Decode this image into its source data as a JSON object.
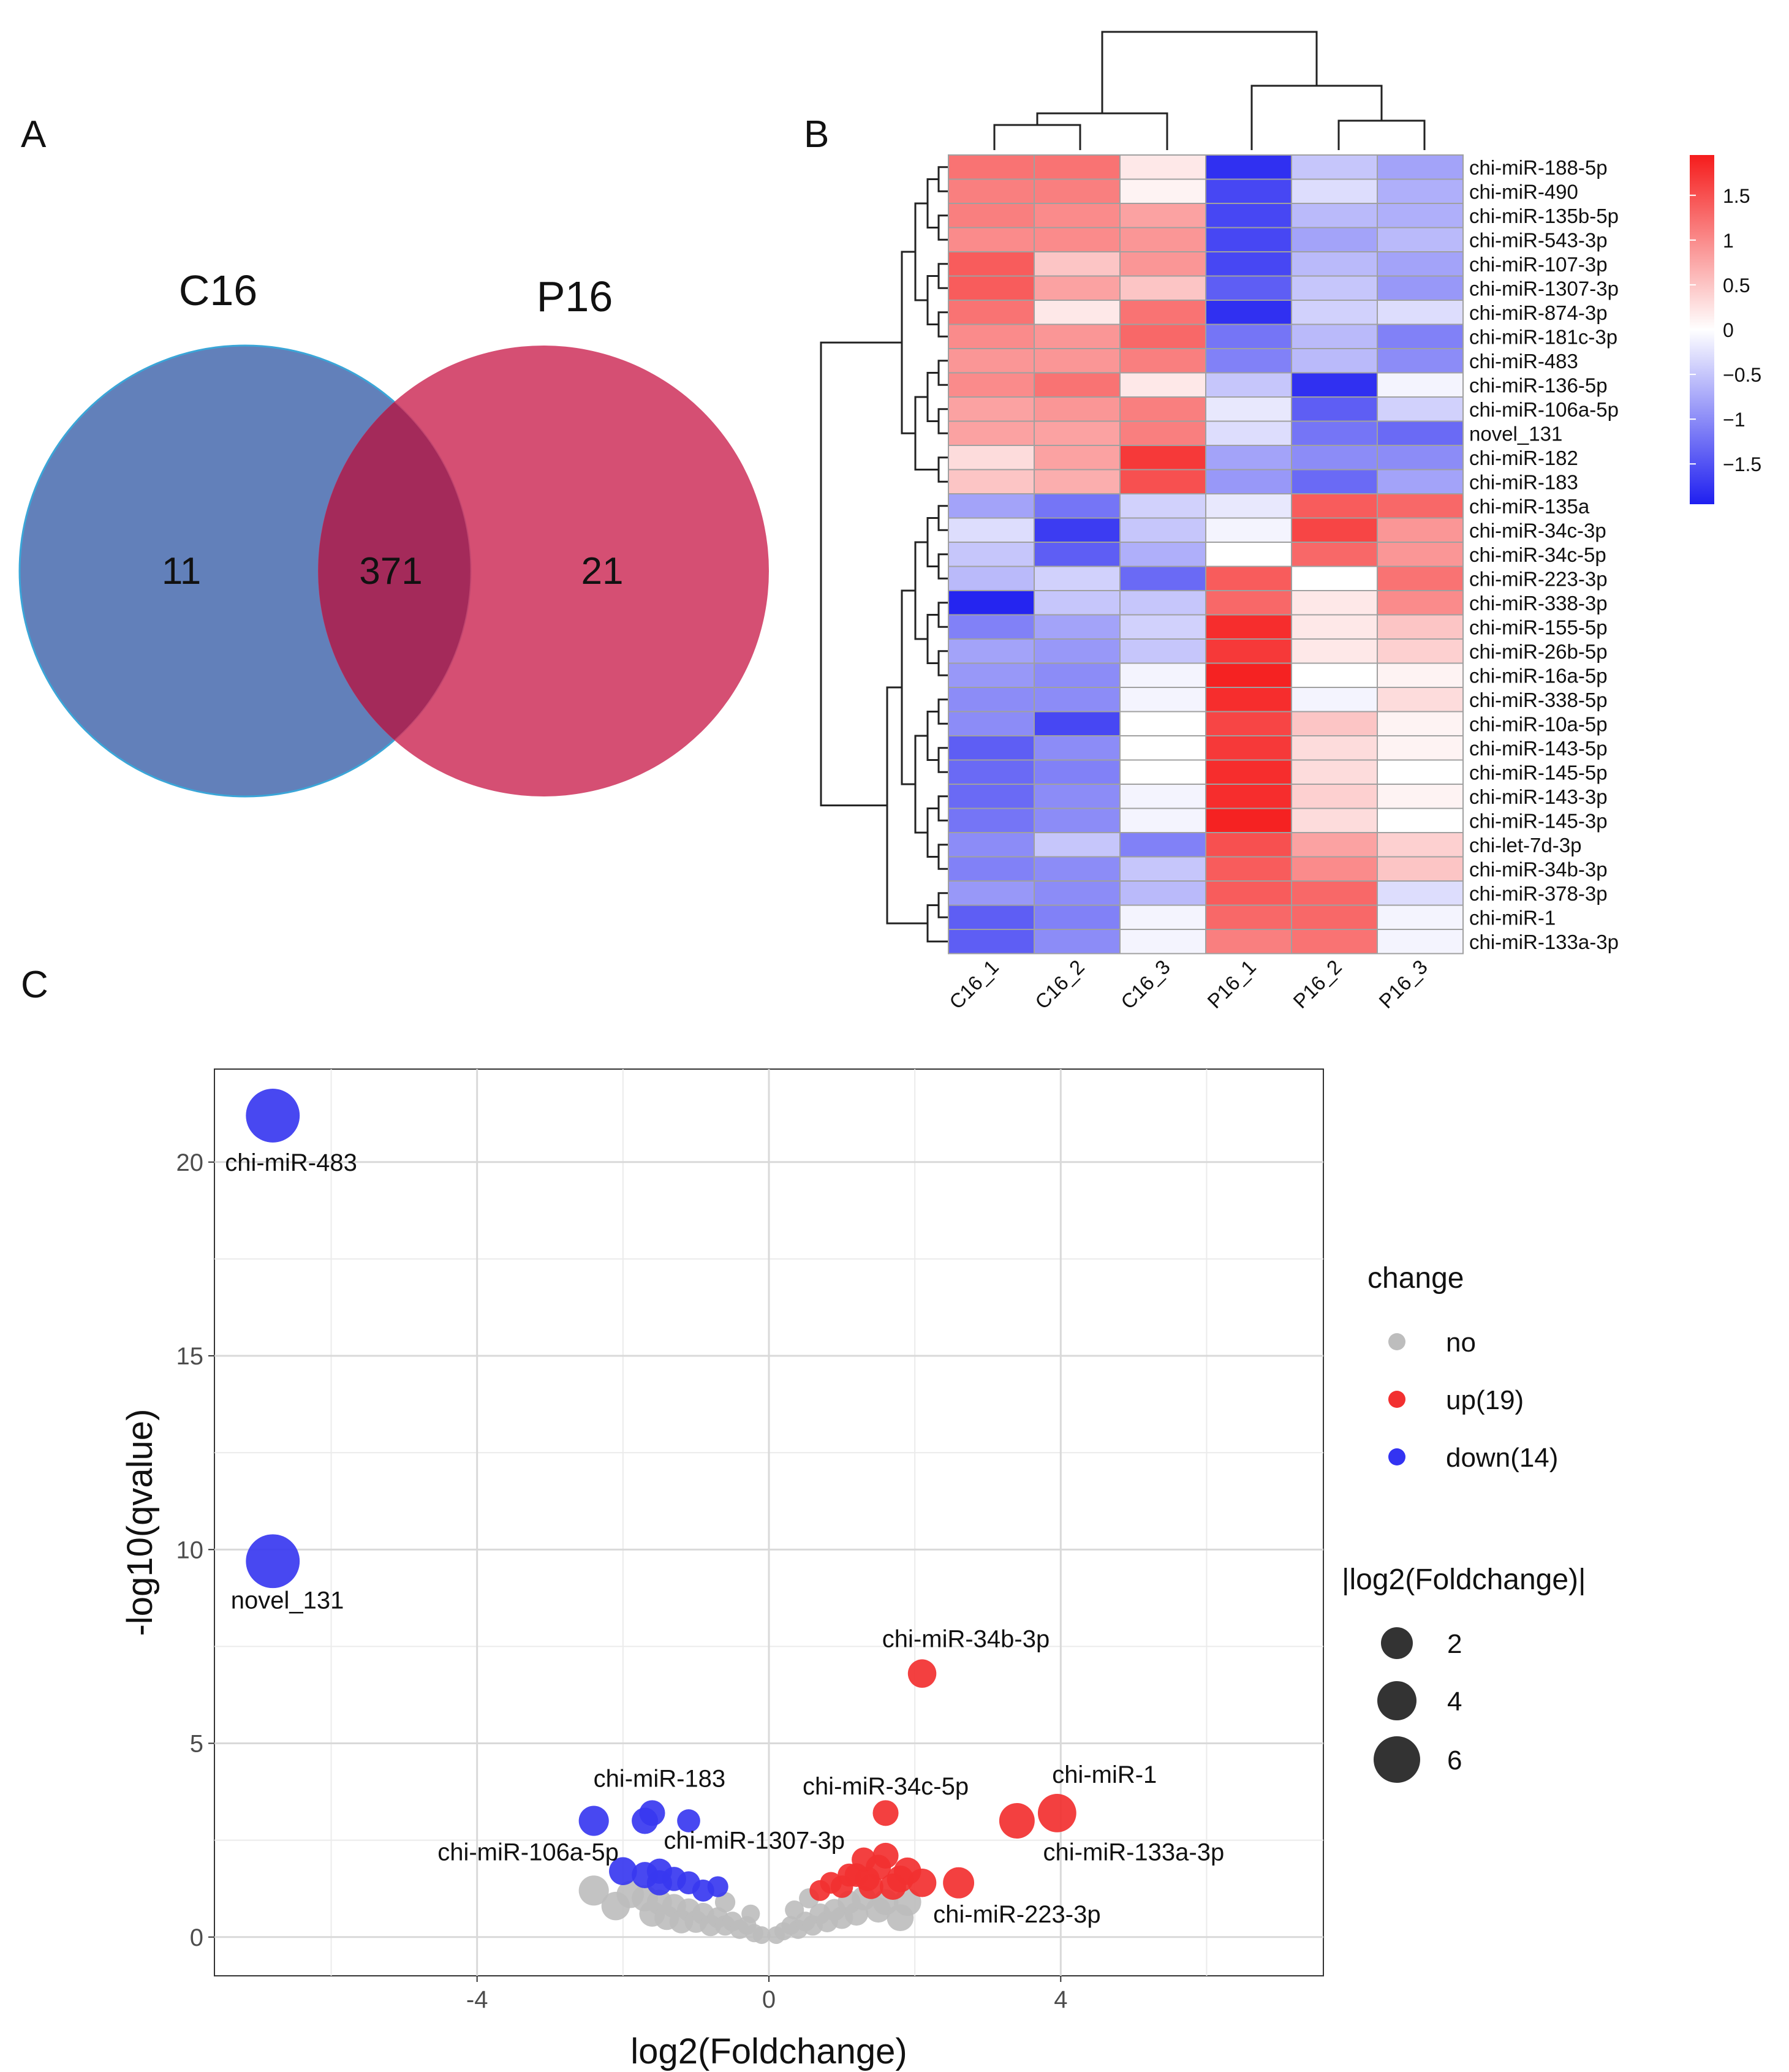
{
  "panels": {
    "a": "A",
    "b": "B",
    "c": "C"
  },
  "venn": {
    "sets": [
      {
        "name": "C16",
        "only": "11",
        "color": "#4c6eb1"
      },
      {
        "name": "P16",
        "only": "21",
        "color": "#d03c64"
      }
    ],
    "overlap": "371",
    "overlap_color": "#a42a5a"
  },
  "heatmap": {
    "columns": [
      "C16_1",
      "C16_2",
      "C16_3",
      "P16_1",
      "P16_2",
      "P16_3"
    ],
    "rows": [
      "chi-miR-188-5p",
      "chi-miR-490",
      "chi-miR-135b-5p",
      "chi-miR-543-3p",
      "chi-miR-107-3p",
      "chi-miR-1307-3p",
      "chi-miR-874-3p",
      "chi-miR-181c-3p",
      "chi-miR-483",
      "chi-miR-136-5p",
      "chi-miR-106a-5p",
      "novel_131",
      "chi-miR-182",
      "chi-miR-183",
      "chi-miR-135a",
      "chi-miR-34c-3p",
      "chi-miR-34c-5p",
      "chi-miR-223-3p",
      "chi-miR-338-3p",
      "chi-miR-155-5p",
      "chi-miR-26b-5p",
      "chi-miR-16a-5p",
      "chi-miR-338-5p",
      "chi-miR-10a-5p",
      "chi-miR-143-5p",
      "chi-miR-145-5p",
      "chi-miR-143-3p",
      "chi-miR-145-3p",
      "chi-let-7d-3p",
      "chi-miR-34b-3p",
      "chi-miR-378-3p",
      "chi-miR-1",
      "chi-miR-133a-3p"
    ],
    "values": [
      [
        1.2,
        1.2,
        0.2,
        -1.8,
        -0.5,
        -0.8
      ],
      [
        1.1,
        1.1,
        0.1,
        -1.6,
        -0.3,
        -0.7
      ],
      [
        1.1,
        1.0,
        0.8,
        -1.6,
        -0.6,
        -0.7
      ],
      [
        1.0,
        1.0,
        0.9,
        -1.6,
        -0.8,
        -0.6
      ],
      [
        1.4,
        0.5,
        0.9,
        -1.6,
        -0.6,
        -0.8
      ],
      [
        1.4,
        0.8,
        0.5,
        -1.4,
        -0.5,
        -0.9
      ],
      [
        1.2,
        0.2,
        1.2,
        -1.8,
        -0.4,
        -0.3
      ],
      [
        1.0,
        0.9,
        1.3,
        -1.2,
        -0.6,
        -1.1
      ],
      [
        0.9,
        0.9,
        1.1,
        -1.1,
        -0.6,
        -1.0
      ],
      [
        1.0,
        1.2,
        0.2,
        -0.5,
        -1.8,
        -0.1
      ],
      [
        0.8,
        0.9,
        1.1,
        -0.2,
        -1.4,
        -0.4
      ],
      [
        0.8,
        0.8,
        1.1,
        -0.3,
        -1.2,
        -1.3
      ],
      [
        0.3,
        0.8,
        1.7,
        -0.8,
        -1.0,
        -1.0
      ],
      [
        0.5,
        0.7,
        1.5,
        -0.9,
        -1.3,
        -0.8
      ],
      [
        -0.8,
        -1.2,
        -0.4,
        -0.2,
        1.4,
        1.3
      ],
      [
        -0.3,
        -1.7,
        -0.5,
        -0.1,
        1.6,
        0.9
      ],
      [
        -0.5,
        -1.4,
        -0.7,
        0.0,
        1.3,
        0.9
      ],
      [
        -0.6,
        -0.4,
        -1.3,
        1.4,
        0.0,
        1.2
      ],
      [
        -1.9,
        -0.5,
        -0.5,
        1.3,
        0.2,
        1.0
      ],
      [
        -1.1,
        -0.8,
        -0.4,
        1.8,
        0.2,
        0.5
      ],
      [
        -0.8,
        -0.9,
        -0.5,
        1.7,
        0.2,
        0.4
      ],
      [
        -0.9,
        -1.0,
        -0.1,
        1.9,
        0.0,
        0.1
      ],
      [
        -1.0,
        -1.0,
        -0.1,
        1.8,
        -0.1,
        0.3
      ],
      [
        -1.0,
        -1.6,
        0.0,
        1.6,
        0.5,
        0.1
      ],
      [
        -1.4,
        -1.0,
        0.0,
        1.7,
        0.3,
        0.1
      ],
      [
        -1.3,
        -1.1,
        0.0,
        1.8,
        0.3,
        0.0
      ],
      [
        -1.3,
        -1.0,
        -0.1,
        1.8,
        0.4,
        0.1
      ],
      [
        -1.2,
        -1.0,
        -0.1,
        1.9,
        0.3,
        0.0
      ],
      [
        -1.0,
        -0.5,
        -1.1,
        1.5,
        0.8,
        0.4
      ],
      [
        -1.1,
        -1.0,
        -0.5,
        1.4,
        1.0,
        0.5
      ],
      [
        -0.9,
        -1.0,
        -0.6,
        1.4,
        1.3,
        -0.3
      ],
      [
        -1.4,
        -1.1,
        -0.1,
        1.3,
        1.3,
        -0.1
      ],
      [
        -1.4,
        -1.0,
        -0.1,
        1.1,
        1.2,
        -0.1
      ]
    ],
    "legend": {
      "ticks": [
        "1.5",
        "1",
        "0.5",
        "0",
        "−0.5",
        "−1",
        "−1.5"
      ],
      "values": [
        1.5,
        1,
        0.5,
        0,
        -0.5,
        -1,
        -1.5
      ],
      "min": -1.95,
      "max": 1.95
    },
    "colors": {
      "low": "#1f1ff0",
      "mid": "#ffffff",
      "high": "#f51c1c",
      "grid": "#a0a0a0"
    }
  },
  "chart_data": {
    "type": "scatter",
    "xlabel": "log2(Foldchange)",
    "ylabel": "-log10(qvalue)",
    "xlim": [
      -7.6,
      7.6
    ],
    "ylim": [
      -1.0,
      22.4
    ],
    "xticks": [
      -4,
      0,
      4
    ],
    "xtick_labels": [
      "-4",
      "0",
      "4"
    ],
    "yticks": [
      0,
      5,
      10,
      15,
      20
    ],
    "ytick_labels": [
      "0",
      "5",
      "10",
      "15",
      "20"
    ],
    "grid": true,
    "legend": {
      "title": "change",
      "items": [
        {
          "label": "no",
          "color": "#bdbdbd"
        },
        {
          "label": "up(19)",
          "color": "#f23030"
        },
        {
          "label": "down(14)",
          "color": "#3333f2"
        }
      ],
      "size_title": "|log2(Foldchange)|",
      "sizes": [
        {
          "label": "2",
          "value": 2
        },
        {
          "label": "4",
          "value": 4
        },
        {
          "label": "6",
          "value": 6
        }
      ]
    },
    "series": [
      {
        "name": "down",
        "color": "#3838f0",
        "points": [
          [
            -6.8,
            21.2,
            6.8
          ],
          [
            -6.8,
            9.7,
            6.8
          ],
          [
            -2.4,
            3.0,
            2.4
          ],
          [
            -1.6,
            3.2,
            1.6
          ],
          [
            -1.7,
            3.0,
            1.7
          ],
          [
            -1.1,
            3.0,
            1.1
          ],
          [
            -1.7,
            1.6,
            1.7
          ],
          [
            -1.5,
            1.4,
            1.5
          ],
          [
            -1.1,
            1.4,
            1.1
          ],
          [
            -0.7,
            1.3,
            0.7
          ],
          [
            -1.3,
            1.5,
            1.3
          ],
          [
            -1.5,
            1.7,
            1.5
          ],
          [
            -0.9,
            1.2,
            0.9
          ],
          [
            -2.0,
            1.7,
            2.0
          ]
        ]
      },
      {
        "name": "up",
        "color": "#f23030",
        "points": [
          [
            2.1,
            6.8,
            2.1
          ],
          [
            1.6,
            3.2,
            1.6
          ],
          [
            3.4,
            3.0,
            3.4
          ],
          [
            3.95,
            3.2,
            3.95
          ],
          [
            2.6,
            1.4,
            2.6
          ],
          [
            1.3,
            2.0,
            1.3
          ],
          [
            1.5,
            1.8,
            1.5
          ],
          [
            1.2,
            1.6,
            1.2
          ],
          [
            1.8,
            1.5,
            1.8
          ],
          [
            2.1,
            1.4,
            2.1
          ],
          [
            1.4,
            1.3,
            1.4
          ],
          [
            1.0,
            1.3,
            1.0
          ],
          [
            0.7,
            1.2,
            0.7
          ],
          [
            1.6,
            2.1,
            1.6
          ],
          [
            1.35,
            1.5,
            1.35
          ],
          [
            1.9,
            1.7,
            1.9
          ],
          [
            1.1,
            1.6,
            1.1
          ],
          [
            1.7,
            1.3,
            1.7
          ],
          [
            0.85,
            1.4,
            0.85
          ]
        ]
      },
      {
        "name": "no",
        "color": "#bdbdbd",
        "points": [
          [
            -2.4,
            1.2,
            2.4
          ],
          [
            -2.1,
            0.8,
            2.1
          ],
          [
            -1.7,
            1.0,
            1.7
          ],
          [
            -1.6,
            0.6,
            1.6
          ],
          [
            -1.5,
            0.9,
            1.5
          ],
          [
            -1.4,
            0.5,
            1.4
          ],
          [
            -1.3,
            0.8,
            1.3
          ],
          [
            -1.2,
            0.4,
            1.2
          ],
          [
            -1.1,
            0.7,
            1.1
          ],
          [
            -1.0,
            0.4,
            1.0
          ],
          [
            -0.9,
            0.6,
            0.9
          ],
          [
            -0.8,
            0.3,
            0.8
          ],
          [
            -0.7,
            0.5,
            0.7
          ],
          [
            -0.6,
            0.3,
            0.6
          ],
          [
            -0.5,
            0.4,
            0.5
          ],
          [
            -0.4,
            0.2,
            0.4
          ],
          [
            -0.3,
            0.3,
            0.3
          ],
          [
            -0.2,
            0.1,
            0.2
          ],
          [
            -0.1,
            0.05,
            0.1
          ],
          [
            0.1,
            0.05,
            0.1
          ],
          [
            0.2,
            0.15,
            0.2
          ],
          [
            0.3,
            0.3,
            0.3
          ],
          [
            0.4,
            0.2,
            0.4
          ],
          [
            0.5,
            0.4,
            0.5
          ],
          [
            0.6,
            0.3,
            0.6
          ],
          [
            0.7,
            0.6,
            0.7
          ],
          [
            0.8,
            0.4,
            0.8
          ],
          [
            0.9,
            0.7,
            0.9
          ],
          [
            1.0,
            0.5,
            1.0
          ],
          [
            1.1,
            0.9,
            1.1
          ],
          [
            1.2,
            0.6,
            1.2
          ],
          [
            1.3,
            1.0,
            1.3
          ],
          [
            1.5,
            0.7,
            1.5
          ],
          [
            1.6,
            0.9,
            1.6
          ],
          [
            1.8,
            0.5,
            1.8
          ],
          [
            1.9,
            0.9,
            1.9
          ],
          [
            0.55,
            1.0,
            0.55
          ],
          [
            0.35,
            0.7,
            0.35
          ],
          [
            -0.25,
            0.6,
            0.25
          ],
          [
            -0.6,
            0.9,
            0.6
          ],
          [
            -1.9,
            1.1,
            1.9
          ]
        ]
      }
    ],
    "annotations": [
      {
        "text": "chi-miR-483",
        "x": -6.55,
        "y": 20.0
      },
      {
        "text": "novel_131",
        "x": -6.6,
        "y": 8.7
      },
      {
        "text": "chi-miR-34b-3p",
        "x": 2.7,
        "y": 7.7
      },
      {
        "text": "chi-miR-183",
        "x": -1.5,
        "y": 4.1
      },
      {
        "text": "chi-miR-34c-5p",
        "x": 1.6,
        "y": 3.9
      },
      {
        "text": "chi-miR-1",
        "x": 4.6,
        "y": 4.2
      },
      {
        "text": "chi-miR-1307-3p",
        "x": -0.2,
        "y": 2.5
      },
      {
        "text": "chi-miR-106a-5p",
        "x": -3.3,
        "y": 2.2
      },
      {
        "text": "chi-miR-133a-3p",
        "x": 5.0,
        "y": 2.2
      },
      {
        "text": "chi-miR-223-3p",
        "x": 3.4,
        "y": 0.6
      }
    ]
  }
}
